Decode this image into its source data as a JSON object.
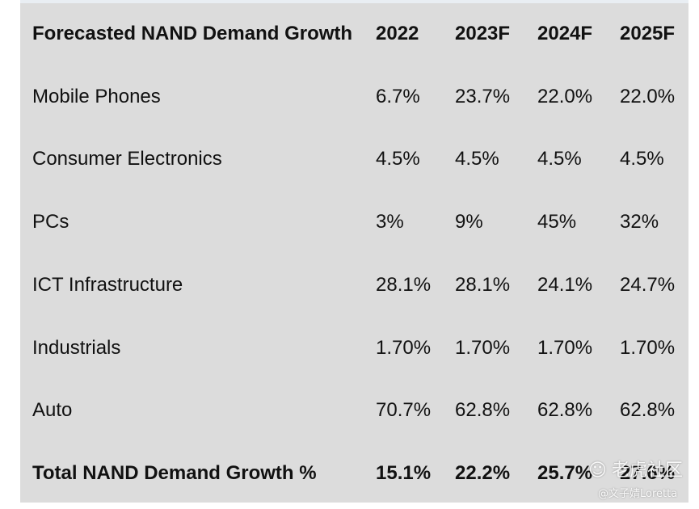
{
  "chart_data": {
    "type": "table",
    "title": "",
    "columns": [
      "Forecasted NAND Demand Growth",
      "2022",
      "2023F",
      "2024F",
      "2025F"
    ],
    "rows": [
      {
        "label": "Mobile Phones",
        "values": [
          "6.7%",
          "23.7%",
          "22.0%",
          "22.0%"
        ]
      },
      {
        "label": "Consumer Electronics",
        "values": [
          "4.5%",
          "4.5%",
          "4.5%",
          "4.5%"
        ]
      },
      {
        "label": "PCs",
        "values": [
          "3%",
          "9%",
          "45%",
          "32%"
        ]
      },
      {
        "label": "ICT Infrastructure",
        "values": [
          "28.1%",
          "28.1%",
          "24.1%",
          "24.7%"
        ]
      },
      {
        "label": "Industrials",
        "values": [
          "1.70%",
          "1.70%",
          "1.70%",
          "1.70%"
        ]
      },
      {
        "label": "Auto",
        "values": [
          "70.7%",
          "62.8%",
          "62.8%",
          "62.8%"
        ]
      }
    ],
    "total": {
      "label": "Total NAND Demand Growth %",
      "values": [
        "15.1%",
        "22.2%",
        "25.7%",
        "27.6%"
      ]
    }
  },
  "watermark": {
    "brand": "老虎社区",
    "author": "@文子婧Loretta"
  }
}
